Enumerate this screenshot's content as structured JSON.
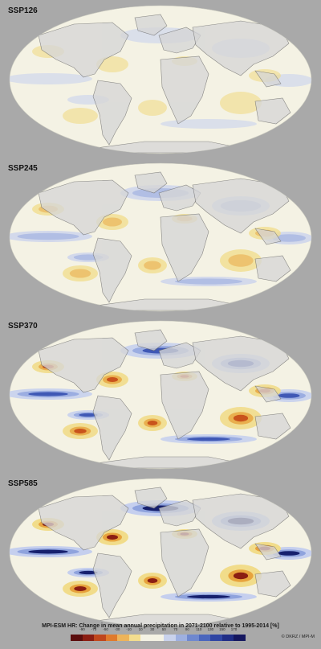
{
  "panels": [
    {
      "label": "SSP126",
      "intensity": 0.25
    },
    {
      "label": "SSP245",
      "intensity": 0.5
    },
    {
      "label": "SSP370",
      "intensity": 0.8
    },
    {
      "label": "SSP585",
      "intensity": 1.0
    }
  ],
  "caption": "MPI-ESM HR: Change in mean annual precipitation in 2071-2100 relative to 1995-2014 [%]",
  "credit": "© DKRZ / MPI-M",
  "colorbar": {
    "ticks": [
      "-90",
      "-70",
      "-50",
      "-30",
      "-10",
      "10",
      "30",
      "50",
      "70",
      "90",
      "110",
      "130",
      "150",
      "170"
    ],
    "colors": [
      "#5a0d0d",
      "#8b1d12",
      "#c0461c",
      "#e07a2c",
      "#eeb45a",
      "#f3dd8e",
      "#f4f2e4",
      "#f4f2e4",
      "#c9d2ec",
      "#9eb0e0",
      "#6f88cf",
      "#4a66bd",
      "#2f45a3",
      "#1f2d86",
      "#15175f"
    ]
  },
  "colors": {
    "ocean": "#f4f2e4",
    "land": "#d6d6d6",
    "dry_light": "#f1dc8a",
    "dry_mid": "#e7a33d",
    "dry_strong": "#c9531c",
    "dry_extreme": "#8b1d12",
    "wet_light": "#c5cfee",
    "wet_mid": "#8fa3dd",
    "wet_strong": "#3f58b5",
    "wet_extreme": "#16206e"
  }
}
